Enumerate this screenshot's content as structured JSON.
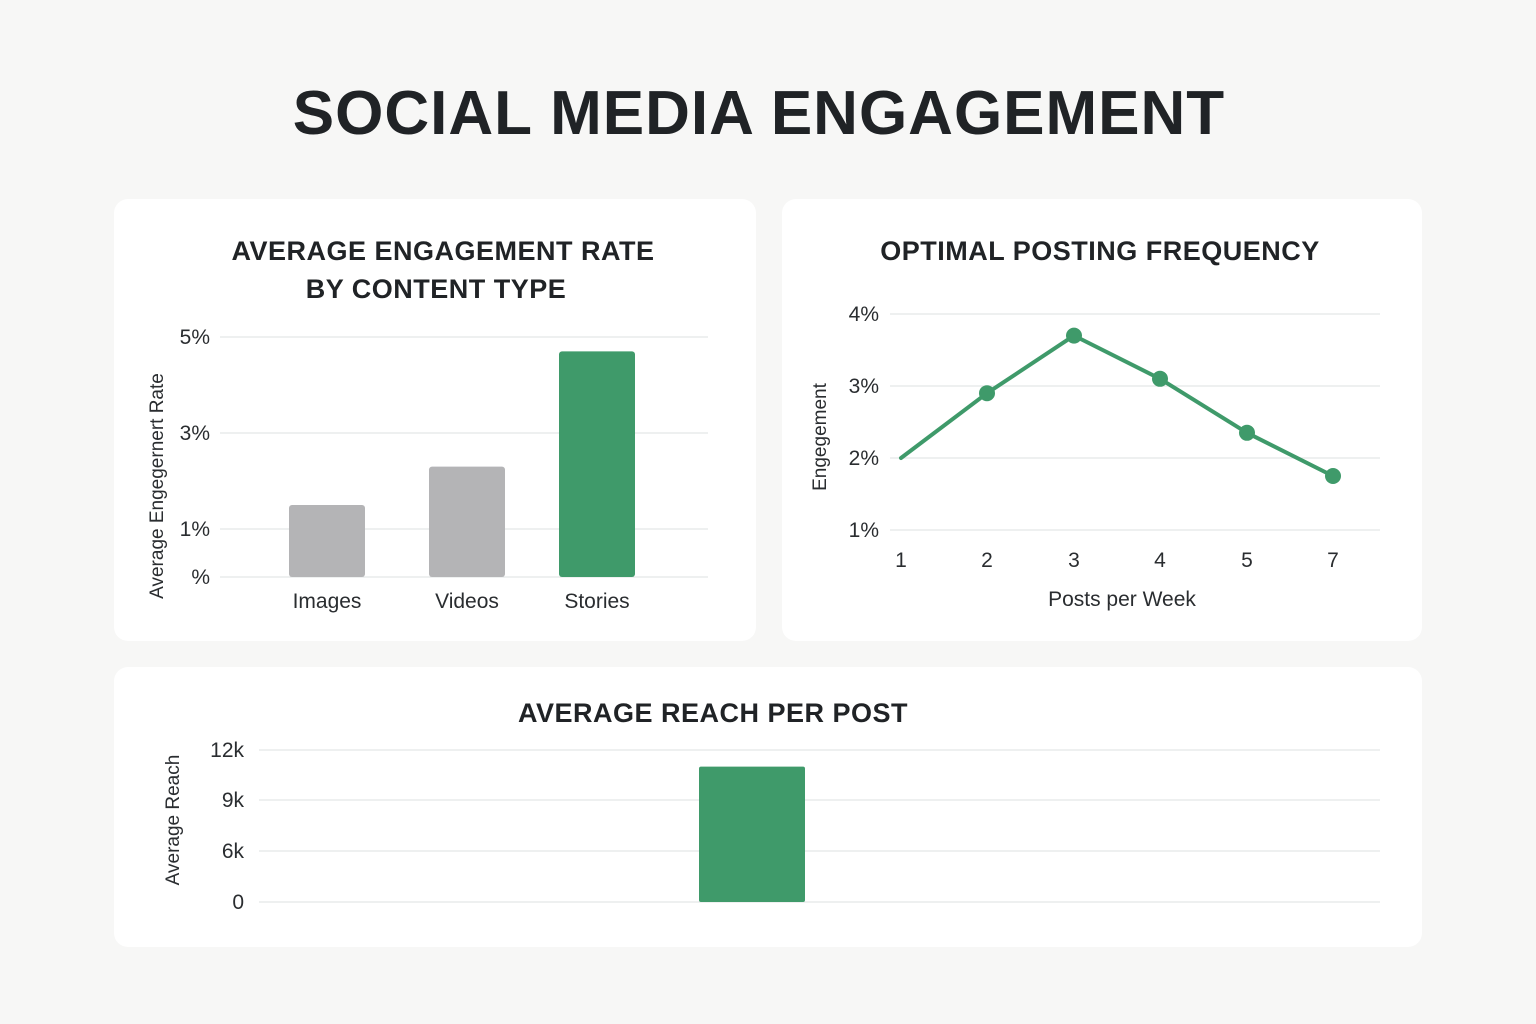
{
  "page": {
    "title": "SOCIAL MEDIA ENGAGEMENT"
  },
  "colors": {
    "accent": "#3f9a6a",
    "neutral_bar": "#b4b4b6",
    "card_background": "#ffffff",
    "page_background": "#f7f7f6"
  },
  "chart_data": [
    {
      "id": "content-type",
      "type": "bar",
      "title_lines": [
        "AVERAGE ENGAGEMENT RATE",
        "BY CONTENT TYPE"
      ],
      "categories": [
        "Images",
        "Videos",
        "Stories"
      ],
      "values": [
        1.5,
        2.3,
        4.7
      ],
      "highlight": [
        false,
        false,
        true
      ],
      "ylabel": "Average Engegernert Rate",
      "ylim": [
        0,
        5
      ],
      "yticks": [
        0,
        1,
        3,
        5
      ],
      "ytick_labels": [
        "%",
        "1%",
        "3%",
        "5%"
      ],
      "grid": true
    },
    {
      "id": "posting-frequency",
      "type": "line",
      "title": "OPTIMAL POSTING FREQUENCY",
      "x": [
        "1",
        "2",
        "3",
        "4",
        "5",
        "7"
      ],
      "values": [
        2.0,
        2.9,
        3.7,
        3.1,
        2.35,
        1.75
      ],
      "markers": [
        false,
        true,
        true,
        true,
        true,
        true
      ],
      "xlabel": "Posts per Week",
      "ylabel": "Engegement",
      "ylim": [
        1,
        4
      ],
      "yticks": [
        1,
        2,
        3,
        4
      ],
      "ytick_labels": [
        "1%",
        "2%",
        "3%",
        "4%"
      ],
      "grid": true
    },
    {
      "id": "reach",
      "type": "bar",
      "title": "AVERAGE REACH PER POST",
      "categories": [
        ""
      ],
      "values": [
        11000
      ],
      "ylabel": "Average Reach",
      "yticks": [
        0,
        6000,
        9000,
        12000
      ],
      "ytick_labels": [
        "0",
        "6k",
        "9k",
        "12k"
      ],
      "grid": true
    }
  ]
}
